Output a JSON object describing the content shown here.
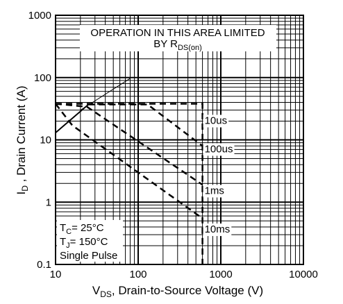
{
  "chart_data": {
    "type": "line",
    "x_scale": "log",
    "y_scale": "log",
    "xlim": [
      10,
      10000
    ],
    "ylim": [
      0.1,
      1000
    ],
    "grid": true,
    "x_ticks": [
      "10",
      "100",
      "1000",
      "10000"
    ],
    "y_ticks": [
      "0.1",
      "1",
      "10",
      "100",
      "1000"
    ],
    "xlabel": {
      "main": "V",
      "sub": "DS",
      "rest": ", Drain-to-Source Voltage (V)"
    },
    "ylabel": {
      "main": "I",
      "sub": "D",
      "rest": " , Drain Current (A)"
    },
    "annotation": {
      "line1": "OPERATION IN THIS AREA LIMITED",
      "line2_main": "BY R",
      "line2_sub": "DS(on)"
    },
    "conditions": [
      {
        "main": "T",
        "sub": "C",
        "rest": "= 25°C"
      },
      {
        "main": "T",
        "sub": "J",
        "rest": "= 150°C"
      },
      {
        "main": "Single Pulse",
        "sub": "",
        "rest": ""
      }
    ],
    "rds_on_limit": {
      "points": [
        [
          10,
          13
        ],
        [
          25,
          37
        ]
      ]
    },
    "series": [
      {
        "name": "10us",
        "points": [
          [
            10,
            38
          ],
          [
            600,
            38
          ],
          [
            600,
            0.1
          ]
        ]
      },
      {
        "name": "100us",
        "points": [
          [
            25,
            37
          ],
          [
            130,
            37
          ],
          [
            600,
            8
          ]
        ]
      },
      {
        "name": "1ms",
        "points": [
          [
            10,
            38
          ],
          [
            24,
            34
          ],
          [
            600,
            1.9
          ]
        ]
      },
      {
        "name": "10ms",
        "points": [
          [
            10,
            38
          ],
          [
            16,
            17
          ],
          [
            600,
            0.55
          ]
        ]
      }
    ],
    "label_positions": [
      {
        "name": "10us",
        "at": [
          600,
          20
        ]
      },
      {
        "name": "100us",
        "at": [
          600,
          7
        ]
      },
      {
        "name": "1ms",
        "at": [
          600,
          1.5
        ]
      },
      {
        "name": "10ms",
        "at": [
          600,
          0.36
        ]
      }
    ],
    "annotation_pointer": {
      "from": [
        80,
        97
      ],
      "to": [
        20,
        30
      ]
    }
  }
}
